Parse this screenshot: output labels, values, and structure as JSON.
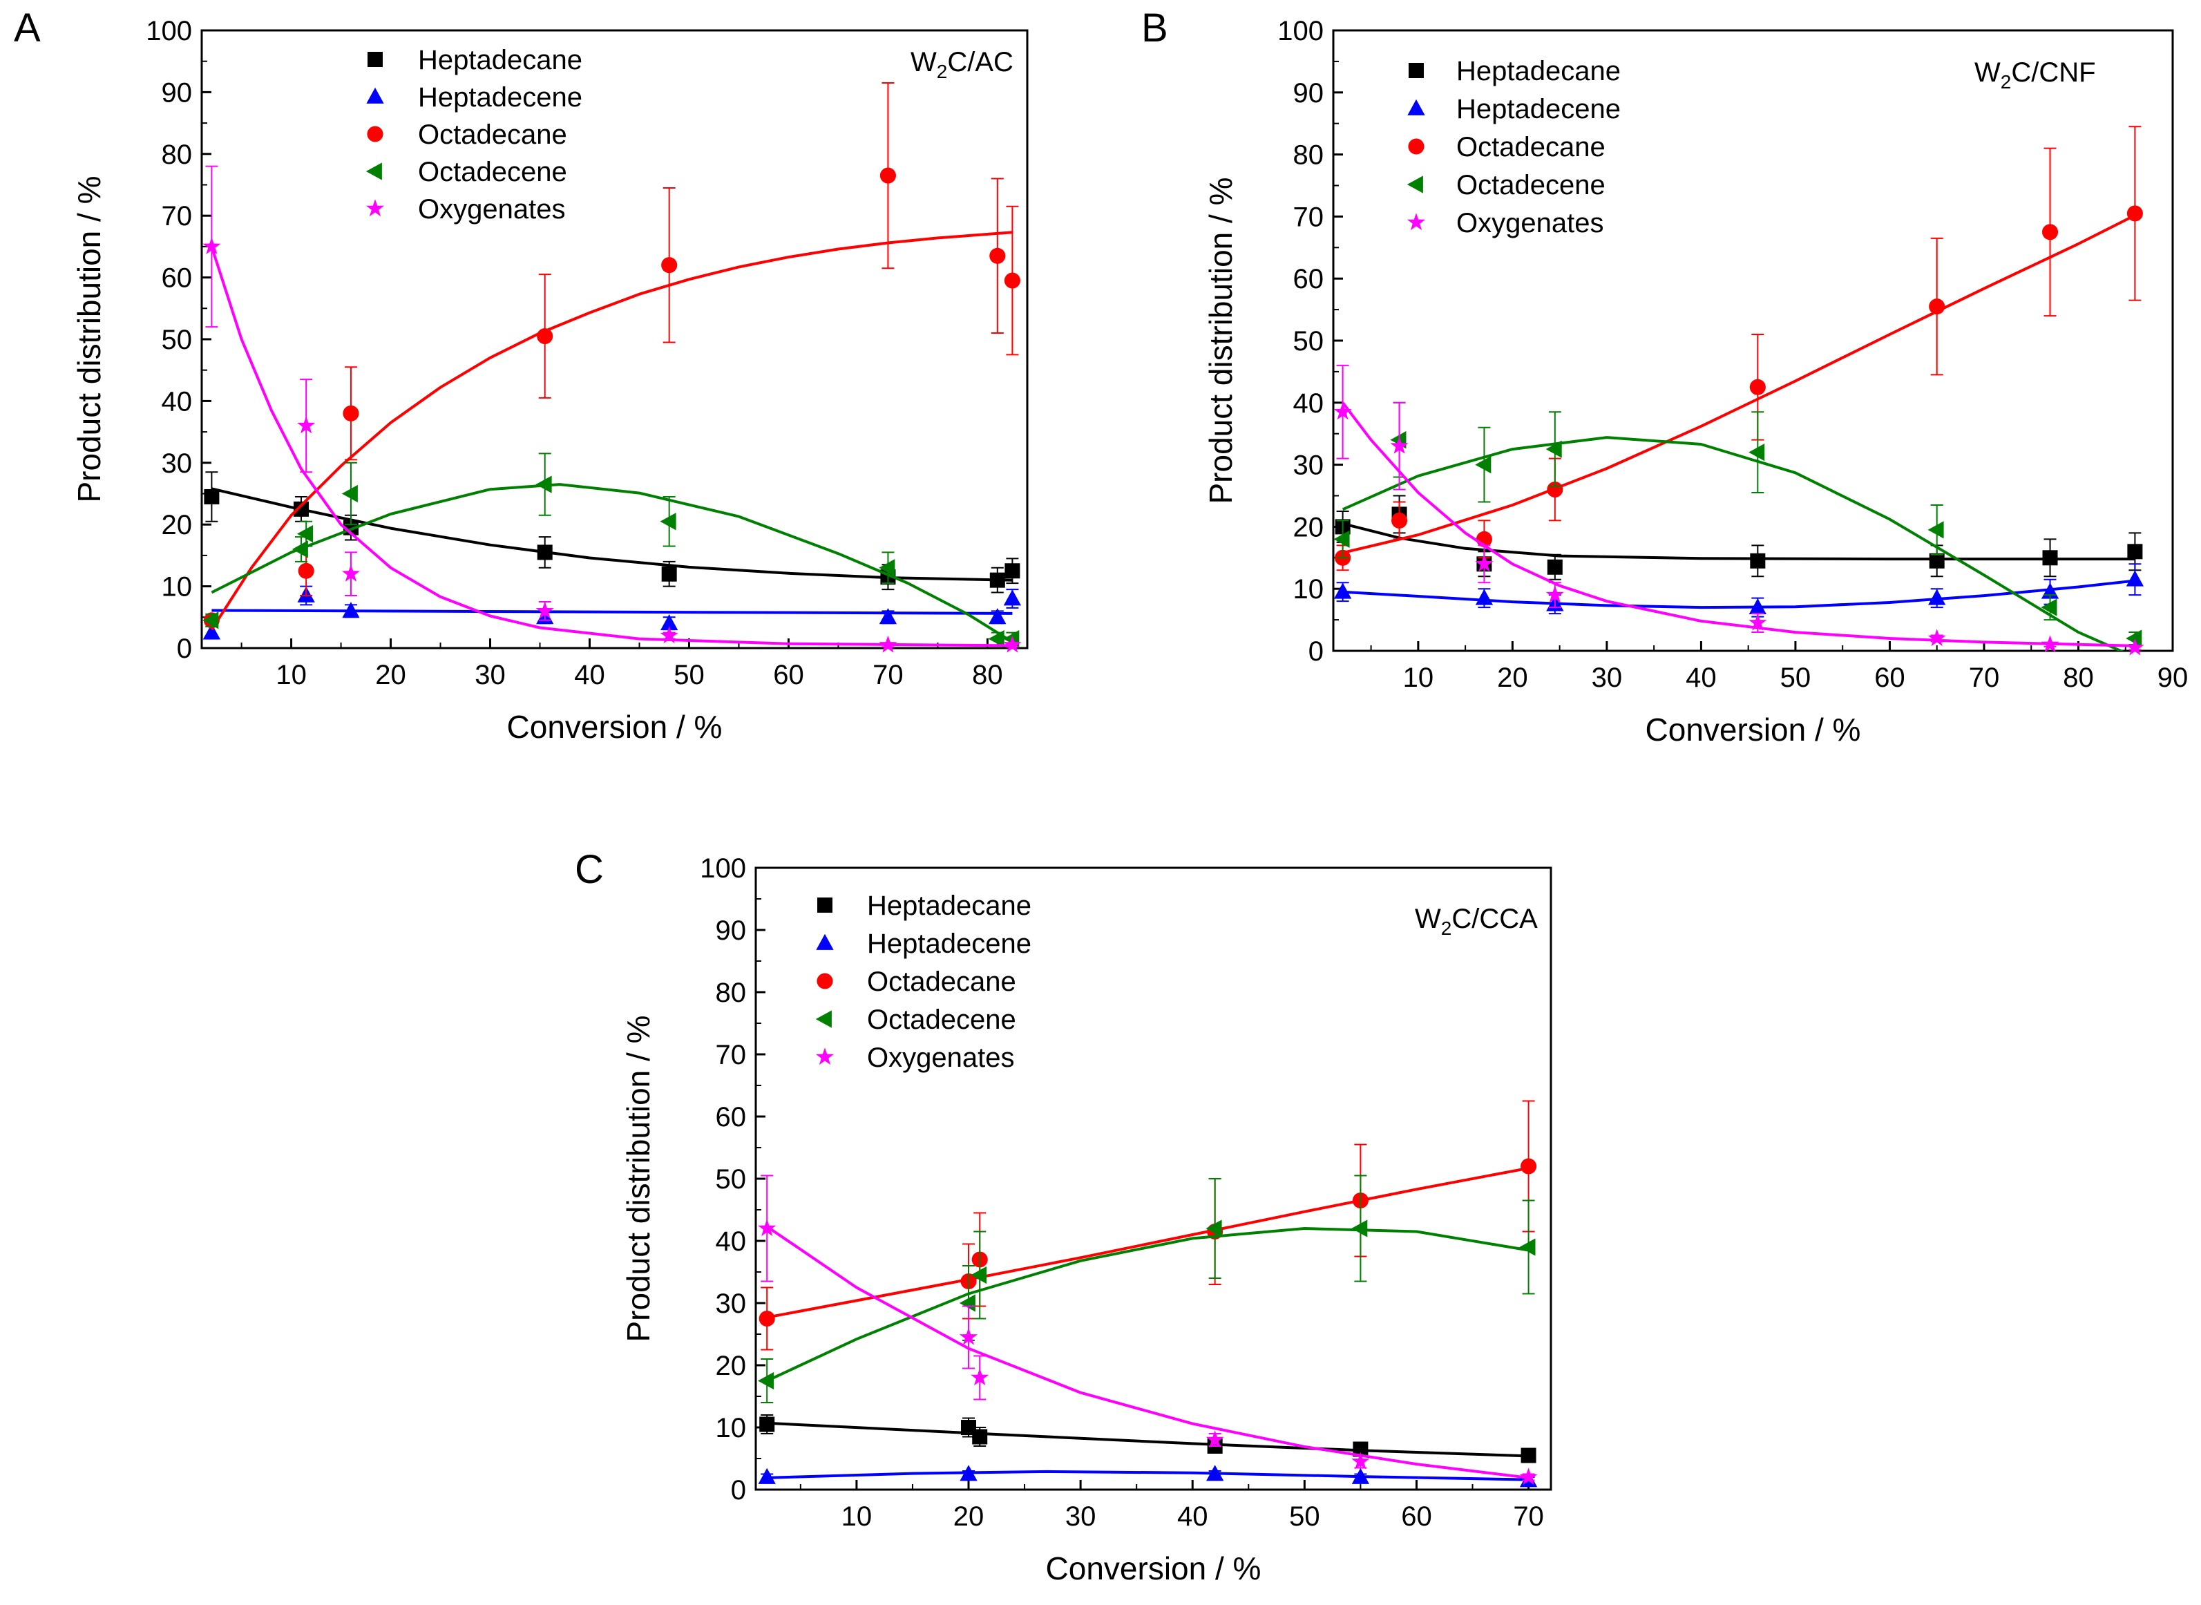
{
  "figure": {
    "series_order": [
      "Heptadecane",
      "Heptadecene",
      "Octadecane",
      "Octadecene",
      "Oxygenates"
    ]
  },
  "series_styles": {
    "Heptadecane": {
      "color": "#000000",
      "marker": "square"
    },
    "Heptadecene": {
      "color": "#0000ff",
      "marker": "triangle-up"
    },
    "Octadecane": {
      "color": "#ff0000",
      "marker": "circle"
    },
    "Octadecene": {
      "color": "#008000",
      "marker": "triangle-left"
    },
    "Oxygenates": {
      "color": "#ff00ff",
      "marker": "star"
    }
  },
  "chart_data": [
    {
      "type": "scatter",
      "panel_label": "A",
      "catalyst": {
        "prefix": "W",
        "sub": "2",
        "suffix": "C/AC"
      },
      "xlabel": "Conversion / %",
      "ylabel": "Product distribution / %",
      "xlim": [
        1,
        84
      ],
      "ylim": [
        0,
        100
      ],
      "xticks": [
        10,
        20,
        30,
        40,
        50,
        60,
        70,
        80
      ],
      "yticks": [
        0,
        10,
        20,
        30,
        40,
        50,
        60,
        70,
        80,
        90,
        100
      ],
      "legend_position": "top-left",
      "series": [
        {
          "name": "Heptadecane",
          "x": [
            2,
            11,
            16,
            35.5,
            48,
            70,
            81,
            82.5
          ],
          "y": [
            24.5,
            22.5,
            19.5,
            15.5,
            12,
            11.5,
            11,
            12.5
          ],
          "err": [
            4,
            2,
            2,
            2.5,
            2,
            2,
            2,
            2
          ],
          "fit": [
            [
              2,
              25.8
            ],
            [
              10,
              22.8
            ],
            [
              20,
              19.4
            ],
            [
              30,
              16.7
            ],
            [
              40,
              14.6
            ],
            [
              50,
              13.1
            ],
            [
              60,
              12.1
            ],
            [
              70,
              11.4
            ],
            [
              82.5,
              11
            ]
          ]
        },
        {
          "name": "Heptadecene",
          "x": [
            2,
            11.5,
            16,
            35.5,
            48,
            70,
            81,
            82.5
          ],
          "y": [
            2.5,
            8.5,
            6,
            5,
            4,
            5,
            5,
            8
          ],
          "err": [
            1,
            1.5,
            1,
            1,
            1,
            1,
            1,
            1.5
          ],
          "fit": [
            [
              2,
              6.1
            ],
            [
              82.5,
              5.6
            ]
          ]
        },
        {
          "name": "Octadecane",
          "x": [
            2,
            11.5,
            16,
            35.5,
            48,
            70,
            81,
            82.5
          ],
          "y": [
            4.5,
            12.5,
            38,
            50.5,
            62,
            76.5,
            63.5,
            59.5
          ],
          "err": [
            1,
            4,
            7.5,
            10,
            12.5,
            15,
            12.5,
            12
          ],
          "fit": [
            [
              2,
              3
            ],
            [
              6,
              13
            ],
            [
              10,
              21.5
            ],
            [
              15,
              29.5
            ],
            [
              20,
              36.5
            ],
            [
              25,
              42.2
            ],
            [
              30,
              47
            ],
            [
              35,
              51
            ],
            [
              40,
              54.3
            ],
            [
              45,
              57.3
            ],
            [
              50,
              59.7
            ],
            [
              55,
              61.7
            ],
            [
              60,
              63.3
            ],
            [
              65,
              64.6
            ],
            [
              70,
              65.6
            ],
            [
              75,
              66.4
            ],
            [
              82.5,
              67.3
            ]
          ]
        },
        {
          "name": "Octadecene",
          "x": [
            2,
            11,
            11.5,
            16,
            35.5,
            48,
            70,
            81,
            82.5
          ],
          "y": [
            4.5,
            16,
            18.5,
            25,
            26.5,
            20.5,
            13,
            1.5,
            1.5
          ],
          "err": [
            1,
            2,
            2,
            5,
            5,
            4,
            2.5,
            1,
            1
          ],
          "fit": [
            [
              2,
              9
            ],
            [
              10,
              15.5
            ],
            [
              20,
              21.7
            ],
            [
              30,
              25.7
            ],
            [
              37,
              26.5
            ],
            [
              45,
              25.1
            ],
            [
              55,
              21.3
            ],
            [
              65,
              15.3
            ],
            [
              72,
              10.5
            ],
            [
              78,
              5.5
            ],
            [
              82.5,
              1
            ]
          ]
        },
        {
          "name": "Oxygenates",
          "x": [
            2,
            11.5,
            16,
            35.5,
            48,
            70,
            82.5
          ],
          "y": [
            65,
            36,
            12,
            6,
            2,
            0.5,
            0.5
          ],
          "err": [
            13,
            7.5,
            3.5,
            1.5,
            0.5,
            0.3,
            0.3
          ],
          "fit": [
            [
              2,
              65
            ],
            [
              5,
              50
            ],
            [
              8,
              38.5
            ],
            [
              11,
              29
            ],
            [
              15,
              20
            ],
            [
              20,
              13
            ],
            [
              25,
              8.3
            ],
            [
              30,
              5.2
            ],
            [
              35,
              3.3
            ],
            [
              45,
              1.5
            ],
            [
              60,
              0.7
            ],
            [
              82.5,
              0.4
            ]
          ]
        }
      ]
    },
    {
      "type": "scatter",
      "panel_label": "B",
      "catalyst": {
        "prefix": "W",
        "sub": "2",
        "suffix": "C/CNF"
      },
      "xlabel": "Conversion / %",
      "ylabel": "Product distribution / %",
      "xlim": [
        1,
        90
      ],
      "ylim": [
        0,
        100
      ],
      "xticks": [
        10,
        20,
        30,
        40,
        50,
        60,
        70,
        80,
        90
      ],
      "yticks": [
        0,
        10,
        20,
        30,
        40,
        50,
        60,
        70,
        80,
        90,
        100
      ],
      "legend_position": "top-left",
      "series": [
        {
          "name": "Heptadecane",
          "x": [
            2,
            8,
            17,
            24.5,
            46,
            65,
            77,
            86
          ],
          "y": [
            20,
            22,
            14,
            13.5,
            14.5,
            14.5,
            15,
            16
          ],
          "err": [
            2.5,
            3,
            2,
            2,
            2.5,
            2.5,
            3,
            3
          ],
          "fit": [
            [
              2,
              20.5
            ],
            [
              8,
              18.2
            ],
            [
              15,
              16.5
            ],
            [
              25,
              15.3
            ],
            [
              40,
              14.9
            ],
            [
              60,
              14.8
            ],
            [
              86,
              14.8
            ]
          ]
        },
        {
          "name": "Heptadecene",
          "x": [
            2,
            17,
            24.5,
            46,
            65,
            77,
            86
          ],
          "y": [
            9.5,
            8.5,
            7.5,
            7,
            8.5,
            9.5,
            11.5
          ],
          "err": [
            1.5,
            1.5,
            1.5,
            1.5,
            1.5,
            2,
            2.5
          ],
          "fit": [
            [
              2,
              9.5
            ],
            [
              10,
              8.8
            ],
            [
              20,
              7.9
            ],
            [
              30,
              7.3
            ],
            [
              40,
              7
            ],
            [
              50,
              7.1
            ],
            [
              60,
              7.8
            ],
            [
              70,
              8.9
            ],
            [
              80,
              10.3
            ],
            [
              86,
              11.3
            ]
          ]
        },
        {
          "name": "Octadecane",
          "x": [
            2,
            8,
            17,
            24.5,
            46,
            65,
            77,
            86
          ],
          "y": [
            15,
            21,
            18,
            26,
            42.5,
            55.5,
            67.5,
            70.5
          ],
          "err": [
            2,
            3,
            3,
            5,
            8.5,
            11,
            13.5,
            14
          ],
          "fit": [
            [
              2,
              15.8
            ],
            [
              10,
              18.7
            ],
            [
              20,
              23.5
            ],
            [
              30,
              29.4
            ],
            [
              40,
              36.2
            ],
            [
              50,
              43.5
            ],
            [
              60,
              51
            ],
            [
              70,
              58.4
            ],
            [
              80,
              65.6
            ],
            [
              86,
              70.2
            ]
          ]
        },
        {
          "name": "Octadecene",
          "x": [
            2,
            8,
            17,
            24.5,
            46,
            65,
            77,
            86
          ],
          "y": [
            18,
            34,
            30,
            32.5,
            32,
            19.5,
            7,
            2
          ],
          "err": [
            3,
            6,
            6,
            6,
            6.5,
            4,
            2,
            1
          ],
          "fit": [
            [
              2,
              22.8
            ],
            [
              10,
              28.2
            ],
            [
              20,
              32.5
            ],
            [
              30,
              34.4
            ],
            [
              40,
              33.3
            ],
            [
              50,
              28.7
            ],
            [
              60,
              21.2
            ],
            [
              70,
              12.2
            ],
            [
              80,
              3
            ],
            [
              86,
              -1
            ]
          ]
        },
        {
          "name": "Oxygenates",
          "x": [
            2,
            8,
            17,
            24.5,
            46,
            65,
            77,
            86
          ],
          "y": [
            38.5,
            33,
            14,
            9,
            4.5,
            2,
            1,
            0.5
          ],
          "err": [
            7.5,
            7,
            3,
            2,
            1.5,
            0.5,
            0.3,
            0.3
          ],
          "fit": [
            [
              2,
              40
            ],
            [
              5,
              34
            ],
            [
              10,
              25.5
            ],
            [
              15,
              19
            ],
            [
              20,
              14
            ],
            [
              25,
              10.5
            ],
            [
              30,
              8
            ],
            [
              40,
              4.8
            ],
            [
              50,
              3
            ],
            [
              60,
              2
            ],
            [
              70,
              1.4
            ],
            [
              86,
              0.8
            ]
          ]
        }
      ]
    },
    {
      "type": "scatter",
      "panel_label": "C",
      "catalyst": {
        "prefix": "W",
        "sub": "2",
        "suffix": "C/CCA"
      },
      "xlabel": "Conversion / %",
      "ylabel": "Product distribution / %",
      "xlim": [
        1,
        72
      ],
      "ylim": [
        0,
        100
      ],
      "xticks": [
        10,
        20,
        30,
        40,
        50,
        60,
        70
      ],
      "yticks": [
        0,
        10,
        20,
        30,
        40,
        50,
        60,
        70,
        80,
        90,
        100
      ],
      "legend_position": "top-left",
      "series": [
        {
          "name": "Heptadecane",
          "x": [
            2,
            20,
            21,
            42,
            55,
            70
          ],
          "y": [
            10.5,
            10,
            8.5,
            7,
            6.5,
            5.5
          ],
          "err": [
            1.5,
            1.5,
            1.5,
            1,
            1,
            1
          ],
          "fit": [
            [
              2,
              10.7
            ],
            [
              20,
              9.1
            ],
            [
              40,
              7.4
            ],
            [
              55,
              6.3
            ],
            [
              70,
              5.4
            ]
          ]
        },
        {
          "name": "Heptadecene",
          "x": [
            2,
            20,
            42,
            55,
            70
          ],
          "y": [
            2,
            2.5,
            2.5,
            2,
            1.5
          ],
          "err": [
            0.5,
            0.5,
            0.5,
            0.5,
            0.5
          ],
          "fit": [
            [
              2,
              1.9
            ],
            [
              15,
              2.6
            ],
            [
              27,
              2.9
            ],
            [
              40,
              2.7
            ],
            [
              55,
              2.1
            ],
            [
              70,
              1.6
            ]
          ]
        },
        {
          "name": "Octadecane",
          "x": [
            2,
            20,
            21,
            42,
            55,
            70
          ],
          "y": [
            27.5,
            33.5,
            37,
            41.5,
            46.5,
            52
          ],
          "err": [
            5,
            6,
            7.5,
            8.5,
            9,
            10.5
          ],
          "fit": [
            [
              2,
              27.7
            ],
            [
              10,
              30.4
            ],
            [
              20,
              33.8
            ],
            [
              30,
              37.3
            ],
            [
              40,
              41
            ],
            [
              50,
              44.7
            ],
            [
              60,
              48.3
            ],
            [
              70,
              51.7
            ]
          ]
        },
        {
          "name": "Octadecene",
          "x": [
            2,
            20,
            21,
            42,
            55,
            70
          ],
          "y": [
            17.5,
            30,
            34.5,
            42,
            42,
            39
          ],
          "err": [
            3.5,
            6,
            7,
            8,
            8.5,
            7.5
          ],
          "fit": [
            [
              2,
              17.5
            ],
            [
              10,
              24.2
            ],
            [
              20,
              31.5
            ],
            [
              30,
              36.8
            ],
            [
              40,
              40.4
            ],
            [
              50,
              42
            ],
            [
              60,
              41.5
            ],
            [
              70,
              38.5
            ]
          ]
        },
        {
          "name": "Oxygenates",
          "x": [
            2,
            20,
            21,
            42,
            55,
            70
          ],
          "y": [
            42,
            24.5,
            18,
            8,
            4.5,
            2
          ],
          "err": [
            8.5,
            5,
            3.5,
            1,
            1,
            0.5
          ],
          "fit": [
            [
              2,
              42.3
            ],
            [
              10,
              32.5
            ],
            [
              20,
              22.7
            ],
            [
              30,
              15.6
            ],
            [
              40,
              10.6
            ],
            [
              50,
              6.9
            ],
            [
              60,
              4.1
            ],
            [
              70,
              1.9
            ]
          ]
        }
      ]
    }
  ]
}
